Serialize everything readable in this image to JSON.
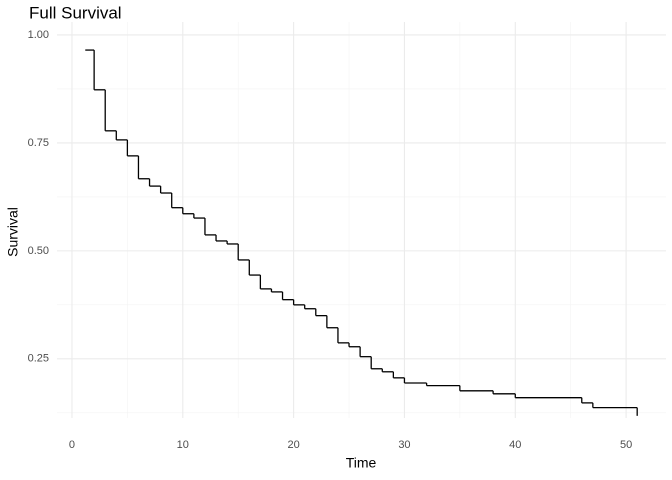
{
  "chart_data": {
    "type": "step",
    "title": "Full Survival",
    "xlabel": "Time",
    "ylabel": "Survival",
    "x": [
      1.2,
      2,
      3,
      4,
      5,
      6,
      7,
      8,
      9,
      10,
      11,
      12,
      13,
      14,
      15,
      16,
      17,
      18,
      19,
      20,
      21,
      22,
      23,
      24,
      25,
      26,
      27,
      28,
      29,
      30,
      32,
      35,
      38,
      40,
      46,
      47,
      51
    ],
    "series": [
      {
        "name": "Survival",
        "color": "#000000",
        "values": [
          0.965,
          0.873,
          0.778,
          0.757,
          0.72,
          0.667,
          0.65,
          0.634,
          0.6,
          0.586,
          0.576,
          0.537,
          0.523,
          0.516,
          0.479,
          0.444,
          0.412,
          0.405,
          0.387,
          0.375,
          0.366,
          0.35,
          0.322,
          0.287,
          0.278,
          0.255,
          0.227,
          0.22,
          0.206,
          0.194,
          0.188,
          0.176,
          0.169,
          0.16,
          0.148,
          0.137,
          0.118
        ]
      }
    ],
    "xlim": [
      -1.35,
      53.6
    ],
    "ylim": [
      0.113,
      1.03
    ],
    "xticks": [
      0,
      10,
      20,
      30,
      40,
      50
    ],
    "yticks": [
      {
        "value": 0.25,
        "label": "0.25"
      },
      {
        "value": 0.5,
        "label": "0.50"
      },
      {
        "value": 0.75,
        "label": "0.75"
      },
      {
        "value": 1,
        "label": "1.00"
      }
    ],
    "grid": true
  }
}
